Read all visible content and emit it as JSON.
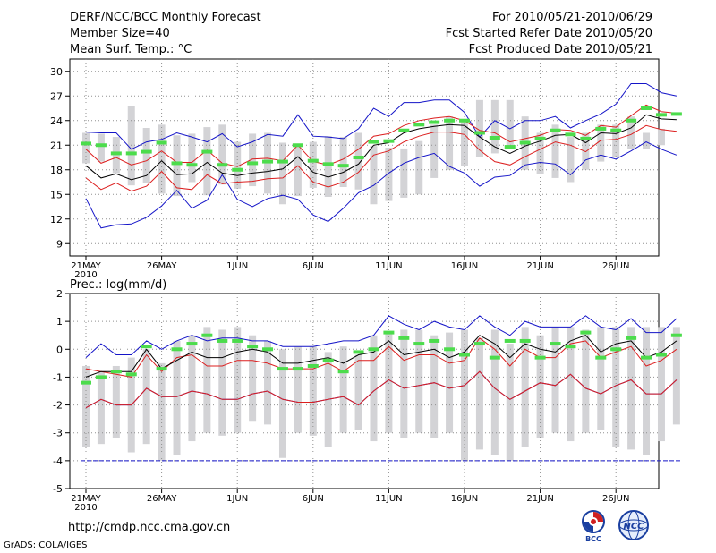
{
  "header": {
    "title": "DERF/NCC/BCC Monthly Forecast",
    "member_size": "Member Size=40",
    "variable": "Mean Surf. Temp.: °C",
    "period": "For 2010/05/21-2010/06/29",
    "started": "Fcst Started Refer Date 2010/05/20",
    "produced": "Fcst Produced Date 2010/05/21"
  },
  "footer": {
    "url": "http://cmdp.ncc.cma.gov.cn",
    "grads": "GrADS: COLA/IGES",
    "logo_bcc": "BCC",
    "logo_ncc": "NCC"
  },
  "colors": {
    "box": "#d3d3d6",
    "median": "#4cdc4c",
    "mean": "#000000",
    "inner": "#dc1f1f",
    "outer": "#1414c8",
    "grid": "#909090",
    "ref": "#1414c8"
  },
  "chart_data": [
    {
      "type": "line",
      "title": "Mean Surf. Temp.: °C",
      "days": 40,
      "x_tick_labels": [
        "21MAY",
        "26MAY",
        "1JUN",
        "6JUN",
        "11JUN",
        "16JUN",
        "21JUN",
        "26JUN"
      ],
      "x_year_label": "2010",
      "ylim": [
        7.5,
        31.5
      ],
      "y_ticks": [
        9,
        12,
        15,
        18,
        21,
        24,
        27,
        30
      ],
      "series": [
        {
          "name": "box_high",
          "values": [
            22.5,
            22.4,
            22.0,
            25.8,
            23.1,
            23.5,
            22.2,
            22.4,
            23.2,
            23.5,
            21.4,
            22.4,
            22.5,
            21.3,
            21.0,
            21.4,
            22.1,
            22.0,
            22.5,
            20.9,
            20.7,
            20.6,
            21.5,
            23.5,
            24.5,
            24.0,
            26.5,
            26.5,
            26.5,
            24.5,
            22.5,
            23.5,
            22.0,
            22.5,
            23.5,
            23.5,
            24.5,
            22.5,
            23.0,
            21.5
          ]
        },
        {
          "name": "box_low",
          "values": [
            18.8,
            19.0,
            17.6,
            16.1,
            16.4,
            15.1,
            14.8,
            16.5,
            14.9,
            16.2,
            15.7,
            16.0,
            15.1,
            13.8,
            14.8,
            15.8,
            14.7,
            15.9,
            15.6,
            13.8,
            14.2,
            14.6,
            15.0,
            17.0,
            18.0,
            18.5,
            19.5,
            20.0,
            20.5,
            18.0,
            17.5,
            17.0,
            16.5,
            18.0,
            19.0,
            19.5,
            20.5,
            20.5,
            21.0,
            21.5
          ]
        },
        {
          "name": "median",
          "values": [
            21.2,
            21.0,
            20.0,
            20.0,
            20.2,
            21.3,
            18.8,
            18.6,
            20.2,
            18.6,
            18.0,
            18.8,
            19.0,
            19.0,
            21.0,
            19.1,
            18.7,
            18.5,
            19.5,
            21.4,
            21.5,
            22.8,
            23.5,
            23.8,
            24.0,
            24.0,
            22.5,
            21.9,
            20.8,
            21.3,
            21.8,
            22.8,
            22.3,
            21.8,
            23.0,
            22.8,
            24.0,
            25.5,
            24.7,
            24.8
          ]
        },
        {
          "name": "mean",
          "values": [
            18.5,
            17.0,
            17.5,
            16.8,
            17.3,
            19.1,
            17.4,
            17.5,
            18.9,
            17.6,
            17.3,
            17.6,
            17.8,
            18.1,
            19.6,
            17.7,
            17.1,
            17.7,
            18.7,
            21.0,
            21.3,
            22.5,
            23.0,
            23.3,
            23.5,
            23.4,
            22.0,
            20.8,
            20.0,
            20.9,
            21.5,
            22.2,
            22.3,
            21.3,
            22.5,
            22.4,
            23.1,
            24.7,
            24.2,
            24.1
          ]
        },
        {
          "name": "upper_inner",
          "values": [
            20.5,
            18.8,
            19.5,
            18.6,
            19.1,
            20.3,
            18.9,
            18.9,
            20.4,
            18.8,
            18.4,
            19.3,
            19.4,
            19.1,
            21.0,
            19.0,
            18.6,
            19.3,
            20.5,
            22.1,
            22.4,
            23.4,
            24.0,
            24.3,
            24.5,
            24.0,
            22.8,
            22.5,
            21.4,
            21.8,
            22.2,
            22.9,
            22.8,
            22.2,
            23.4,
            23.2,
            24.6,
            25.9,
            25.1,
            24.9
          ]
        },
        {
          "name": "lower_inner",
          "values": [
            17.0,
            15.6,
            16.4,
            15.4,
            16.0,
            17.8,
            15.8,
            15.6,
            17.4,
            16.3,
            16.5,
            16.6,
            16.9,
            17.0,
            18.5,
            16.5,
            15.9,
            16.5,
            17.7,
            19.8,
            20.3,
            21.4,
            22.1,
            22.6,
            22.6,
            22.3,
            20.4,
            19.0,
            18.6,
            19.6,
            20.5,
            21.4,
            21.0,
            20.2,
            21.6,
            21.7,
            22.3,
            23.4,
            22.9,
            22.7
          ]
        },
        {
          "name": "upper_outer",
          "values": [
            22.6,
            22.5,
            22.5,
            20.5,
            21.4,
            21.7,
            22.5,
            22.0,
            21.4,
            22.4,
            20.8,
            21.4,
            22.3,
            22.1,
            24.7,
            22.1,
            22.0,
            21.8,
            23.0,
            25.5,
            24.5,
            26.2,
            26.2,
            26.5,
            26.5,
            25.0,
            22.0,
            24.0,
            23.0,
            24.0,
            24.0,
            24.5,
            23.1,
            24.0,
            24.8,
            26.0,
            28.5,
            28.5,
            27.4,
            27.0
          ]
        },
        {
          "name": "lower_outer",
          "values": [
            14.5,
            10.9,
            11.3,
            11.4,
            12.2,
            13.6,
            15.5,
            13.3,
            14.3,
            17.4,
            14.4,
            13.5,
            14.5,
            14.9,
            14.4,
            12.5,
            11.7,
            13.3,
            15.2,
            16.1,
            17.6,
            18.8,
            19.5,
            20.0,
            18.4,
            17.6,
            16.0,
            17.1,
            17.3,
            18.6,
            18.9,
            18.7,
            17.4,
            19.2,
            19.8,
            19.3,
            20.3,
            21.4,
            20.5,
            19.8
          ]
        }
      ]
    },
    {
      "type": "line",
      "title": "Prec.: log(mm/d)",
      "days": 40,
      "x_tick_labels": [
        "21MAY",
        "26MAY",
        "1JUN",
        "6JUN",
        "11JUN",
        "16JUN",
        "21JUN",
        "26JUN"
      ],
      "x_year_label": "2010",
      "ylim": [
        -5,
        2
      ],
      "y_ticks": [
        -5,
        -4,
        -3,
        -2,
        -1,
        0,
        1,
        2
      ],
      "reference_line": -4,
      "series": [
        {
          "name": "box_high",
          "values": [
            -0.6,
            -0.8,
            -0.6,
            -0.3,
            0.0,
            -0.5,
            0.3,
            0.5,
            0.8,
            0.7,
            0.8,
            0.5,
            0.3,
            0.0,
            0.1,
            0.1,
            -0.1,
            0.1,
            -0.2,
            0.5,
            0.6,
            0.7,
            0.7,
            0.5,
            0.6,
            0.7,
            0.4,
            0.7,
            0.2,
            0.8,
            0.5,
            0.8,
            0.8,
            0.7,
            0.8,
            0.8,
            0.8,
            0.8,
            0.8,
            0.8
          ]
        },
        {
          "name": "box_low",
          "values": [
            -3.5,
            -3.4,
            -3.2,
            -3.7,
            -3.4,
            -4.0,
            -3.8,
            -3.3,
            -3.0,
            -3.1,
            -3.0,
            -2.6,
            -2.7,
            -3.9,
            -3.0,
            -3.1,
            -3.5,
            -3.0,
            -2.9,
            -3.3,
            -3.0,
            -3.2,
            -3.0,
            -3.2,
            -3.0,
            -4.0,
            -3.6,
            -3.8,
            -4.0,
            -3.5,
            -3.2,
            -3.0,
            -3.3,
            -3.0,
            -2.9,
            -3.5,
            -3.6,
            -3.8,
            -3.3,
            -2.7
          ]
        },
        {
          "name": "median",
          "values": [
            -1.2,
            -1.0,
            -0.8,
            -0.9,
            0.1,
            -0.7,
            0.0,
            0.2,
            0.5,
            0.3,
            0.3,
            0.1,
            0.0,
            -0.7,
            -0.7,
            -0.6,
            -0.4,
            -0.8,
            -0.1,
            0.0,
            0.6,
            0.4,
            0.2,
            0.3,
            0.0,
            -0.2,
            0.2,
            -0.3,
            0.3,
            0.3,
            -0.3,
            0.2,
            0.1,
            0.6,
            -0.3,
            0.0,
            0.4,
            -0.3,
            -0.2,
            0.5
          ]
        },
        {
          "name": "mean",
          "values": [
            -1.0,
            -0.8,
            -0.8,
            -0.8,
            0.0,
            -0.7,
            -0.4,
            -0.1,
            -0.3,
            -0.3,
            -0.1,
            0.0,
            -0.1,
            -0.5,
            -0.5,
            -0.4,
            -0.3,
            -0.5,
            -0.2,
            -0.1,
            0.3,
            -0.2,
            -0.1,
            0.0,
            -0.3,
            -0.1,
            0.5,
            0.2,
            -0.3,
            0.2,
            0.0,
            -0.1,
            0.3,
            0.5,
            -0.1,
            0.2,
            0.3,
            -0.3,
            -0.1,
            0.3
          ]
        },
        {
          "name": "upper_inner",
          "values": [
            -0.7,
            -0.8,
            -0.9,
            -1.0,
            -0.2,
            -0.8,
            -0.3,
            -0.2,
            -0.6,
            -0.6,
            -0.4,
            -0.4,
            -0.5,
            -0.7,
            -0.7,
            -0.7,
            -0.5,
            -0.8,
            -0.4,
            -0.4,
            0.1,
            -0.4,
            -0.2,
            -0.2,
            -0.5,
            -0.4,
            0.4,
            0.0,
            -0.6,
            0.0,
            -0.3,
            -0.3,
            0.2,
            0.3,
            -0.3,
            -0.1,
            0.1,
            -0.6,
            -0.4,
            0.0
          ]
        },
        {
          "name": "lower_inner",
          "values": [
            -2.1,
            -1.8,
            -2.0,
            -2.0,
            -1.4,
            -1.7,
            -1.7,
            -1.5,
            -1.6,
            -1.8,
            -1.8,
            -1.6,
            -1.5,
            -1.8,
            -1.9,
            -1.9,
            -1.8,
            -1.7,
            -2.0,
            -1.5,
            -1.1,
            -1.4,
            -1.3,
            -1.2,
            -1.4,
            -1.3,
            -0.8,
            -1.4,
            -1.8,
            -1.5,
            -1.2,
            -1.3,
            -0.9,
            -1.4,
            -1.6,
            -1.3,
            -1.1,
            -1.6,
            -1.6,
            -1.1
          ]
        },
        {
          "name": "upper_outer",
          "values": [
            -0.3,
            0.2,
            -0.2,
            -0.2,
            0.3,
            0.0,
            0.3,
            0.5,
            0.3,
            0.4,
            0.4,
            0.3,
            0.3,
            0.1,
            0.1,
            0.1,
            0.2,
            0.3,
            0.3,
            0.5,
            1.2,
            0.9,
            0.7,
            1.0,
            0.8,
            0.7,
            1.2,
            0.8,
            0.5,
            1.0,
            0.8,
            0.8,
            0.8,
            1.2,
            0.8,
            0.7,
            1.1,
            0.6,
            0.6,
            1.1
          ]
        },
        {
          "name": "lower_outer",
          "values": [
            -2.1,
            -1.8,
            -2.0,
            -2.0,
            -1.4,
            -1.7,
            -1.7,
            -1.5,
            -1.6,
            -1.8,
            -1.8,
            -1.6,
            -1.5,
            -1.8,
            -1.9,
            -1.9,
            -1.8,
            -1.7,
            -2.0,
            -1.5,
            -1.1,
            -1.4,
            -1.3,
            -1.2,
            -1.4,
            -1.3,
            -0.8,
            -1.4,
            -1.8,
            -1.5,
            -1.2,
            -1.3,
            -0.9,
            -1.4,
            -1.6,
            -1.3,
            -1.1,
            -1.6,
            -1.6,
            -1.1
          ]
        }
      ]
    }
  ]
}
